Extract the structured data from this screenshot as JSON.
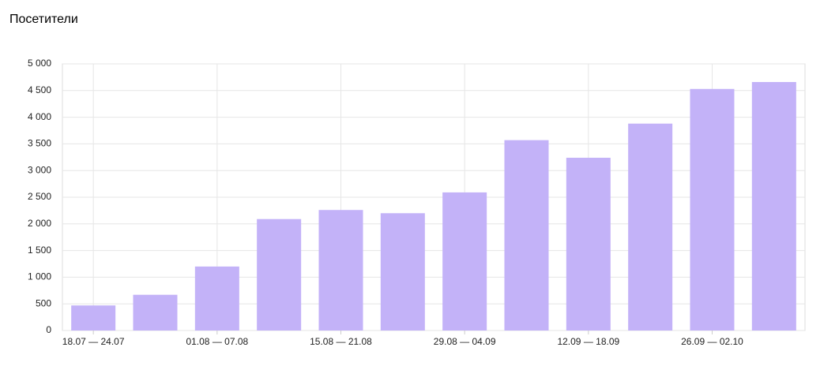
{
  "chart_data": {
    "type": "bar",
    "title": "Посетители",
    "categories": [
      "18.07 — 24.07",
      null,
      "01.08 — 07.08",
      null,
      "15.08 — 21.08",
      null,
      "29.08 — 04.09",
      null,
      "12.09 — 18.09",
      null,
      "26.09 — 02.10",
      null
    ],
    "values": [
      470,
      670,
      1200,
      2090,
      2260,
      2200,
      2590,
      3570,
      3240,
      3880,
      4530,
      4660
    ],
    "color": "#c3b2f8",
    "ylim": [
      0,
      5000
    ],
    "yticks": [
      0,
      500,
      {
        "value": 1000,
        "label": "1 000"
      },
      {
        "value": 1500,
        "label": "1 500"
      },
      {
        "value": 2000,
        "label": "2 000"
      },
      {
        "value": 2500,
        "label": "2 500"
      },
      {
        "value": 3000,
        "label": "3 000"
      },
      {
        "value": 3500,
        "label": "3 500"
      },
      {
        "value": 4000,
        "label": "4 000"
      },
      {
        "value": 4500,
        "label": "4 500"
      },
      {
        "value": 5000,
        "label": "5 000"
      }
    ],
    "grid": true
  }
}
